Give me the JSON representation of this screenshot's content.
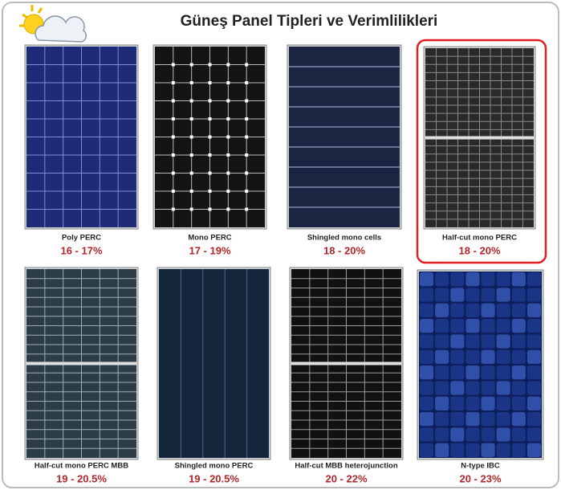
{
  "title": "Güneş Panel Tipleri ve Verimlilikleri",
  "panels": [
    {
      "name": "Poly PERC",
      "efficiency": "16 - 17%"
    },
    {
      "name": "Mono PERC",
      "efficiency": "17 - 19%"
    },
    {
      "name": "Shingled  mono cells",
      "efficiency": "18 - 20%"
    },
    {
      "name": "Half-cut mono PERC",
      "efficiency": "18 - 20%"
    },
    {
      "name": "Half-cut mono PERC MBB",
      "efficiency": "19 - 20.5%"
    },
    {
      "name": "Shingled mono PERC",
      "efficiency": "19 - 20.5%"
    },
    {
      "name": "Half-cut MBB heterojunction",
      "efficiency": "20 - 22%"
    },
    {
      "name": "N-type IBC",
      "efficiency": "20 - 23%"
    }
  ]
}
